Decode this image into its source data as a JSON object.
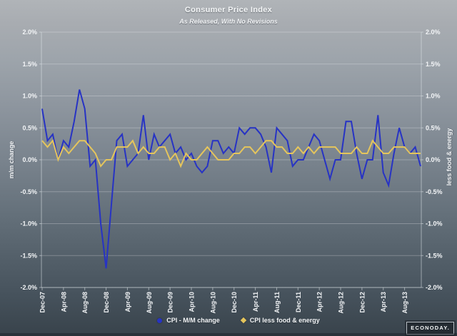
{
  "header": {
    "title": "Consumer Price Index",
    "subtitle": "As Released, With No Revisions"
  },
  "axes": {
    "left_title": "m/m change",
    "right_title": "less food & energy",
    "y_tick_labels": [
      "2.0%",
      "1.5%",
      "1.0%",
      "0.5%",
      "0.0%",
      "-0.5%",
      "-1.0%",
      "-1.5%",
      "-2.0%"
    ],
    "x_tick_labels": [
      "Dec-07",
      "Apr-08",
      "Aug-08",
      "Dec-08",
      "Apr-09",
      "Aug-09",
      "Dec-09",
      "Apr-10",
      "Aug-10",
      "Dec-10",
      "Apr-11",
      "Aug-11",
      "Dec-11",
      "Apr-12",
      "Aug-12",
      "Dec-12",
      "Apr-13",
      "Aug-13"
    ]
  },
  "legend": {
    "items": [
      {
        "label": "CPI - M/M change",
        "color": "#2733c4",
        "marker": "circle"
      },
      {
        "label": "CPI less food & energy",
        "color": "#e5c55c",
        "marker": "diamond"
      }
    ]
  },
  "branding": {
    "logo_text": "ECONODAY."
  },
  "chart_data": {
    "type": "line",
    "title": "Consumer Price Index",
    "subtitle": "As Released, With No Revisions",
    "ylabel_left": "m/m change",
    "ylabel_right": "less food & energy",
    "ylim": [
      -2.0,
      2.0
    ],
    "y_ticks": [
      2.0,
      1.5,
      1.0,
      0.5,
      0.0,
      -0.5,
      -1.0,
      -1.5,
      -2.0
    ],
    "grid": "horizontal",
    "legend_position": "bottom",
    "x_tick_labels": [
      "Dec-07",
      "Apr-08",
      "Aug-08",
      "Dec-08",
      "Apr-09",
      "Aug-09",
      "Dec-09",
      "Apr-10",
      "Aug-10",
      "Dec-10",
      "Apr-11",
      "Aug-11",
      "Dec-11",
      "Apr-12",
      "Aug-12",
      "Dec-12",
      "Apr-13",
      "Aug-13"
    ],
    "x_ticks_every_n_points": 4,
    "series": [
      {
        "name": "CPI - M/M change",
        "color": "#2733c4",
        "values": [
          0.8,
          0.3,
          0.4,
          0.0,
          0.3,
          0.2,
          0.6,
          1.1,
          0.8,
          -0.1,
          0.0,
          -1.0,
          -1.7,
          -0.7,
          0.3,
          0.4,
          -0.1,
          0.0,
          0.1,
          0.7,
          0.0,
          0.4,
          0.2,
          0.3,
          0.4,
          0.1,
          0.2,
          0.0,
          0.1,
          -0.1,
          -0.2,
          -0.1,
          0.3,
          0.3,
          0.1,
          0.2,
          0.1,
          0.5,
          0.4,
          0.5,
          0.5,
          0.4,
          0.2,
          -0.2,
          0.5,
          0.4,
          0.3,
          -0.1,
          0.0,
          0.0,
          0.2,
          0.4,
          0.3,
          0.0,
          -0.3,
          0.0,
          0.0,
          0.6,
          0.6,
          0.1,
          -0.3,
          0.0,
          0.0,
          0.7,
          -0.2,
          -0.4,
          0.1,
          0.5,
          0.2,
          0.1,
          0.2,
          -0.1
        ]
      },
      {
        "name": "CPI less food & energy",
        "color": "#e5c55c",
        "values": [
          0.3,
          0.2,
          0.3,
          0.0,
          0.2,
          0.1,
          0.2,
          0.3,
          0.3,
          0.2,
          0.1,
          -0.1,
          0.0,
          0.0,
          0.2,
          0.2,
          0.2,
          0.3,
          0.1,
          0.2,
          0.1,
          0.1,
          0.2,
          0.2,
          0.0,
          0.1,
          -0.1,
          0.1,
          0.0,
          0.0,
          0.1,
          0.2,
          0.1,
          0.0,
          0.0,
          0.0,
          0.1,
          0.1,
          0.2,
          0.2,
          0.1,
          0.2,
          0.3,
          0.3,
          0.2,
          0.2,
          0.1,
          0.1,
          0.2,
          0.1,
          0.2,
          0.1,
          0.2,
          0.2,
          0.2,
          0.2,
          0.1,
          0.1,
          0.1,
          0.2,
          0.1,
          0.1,
          0.3,
          0.2,
          0.1,
          0.1,
          0.2,
          0.2,
          0.2,
          0.1,
          0.1,
          0.1
        ]
      }
    ]
  }
}
